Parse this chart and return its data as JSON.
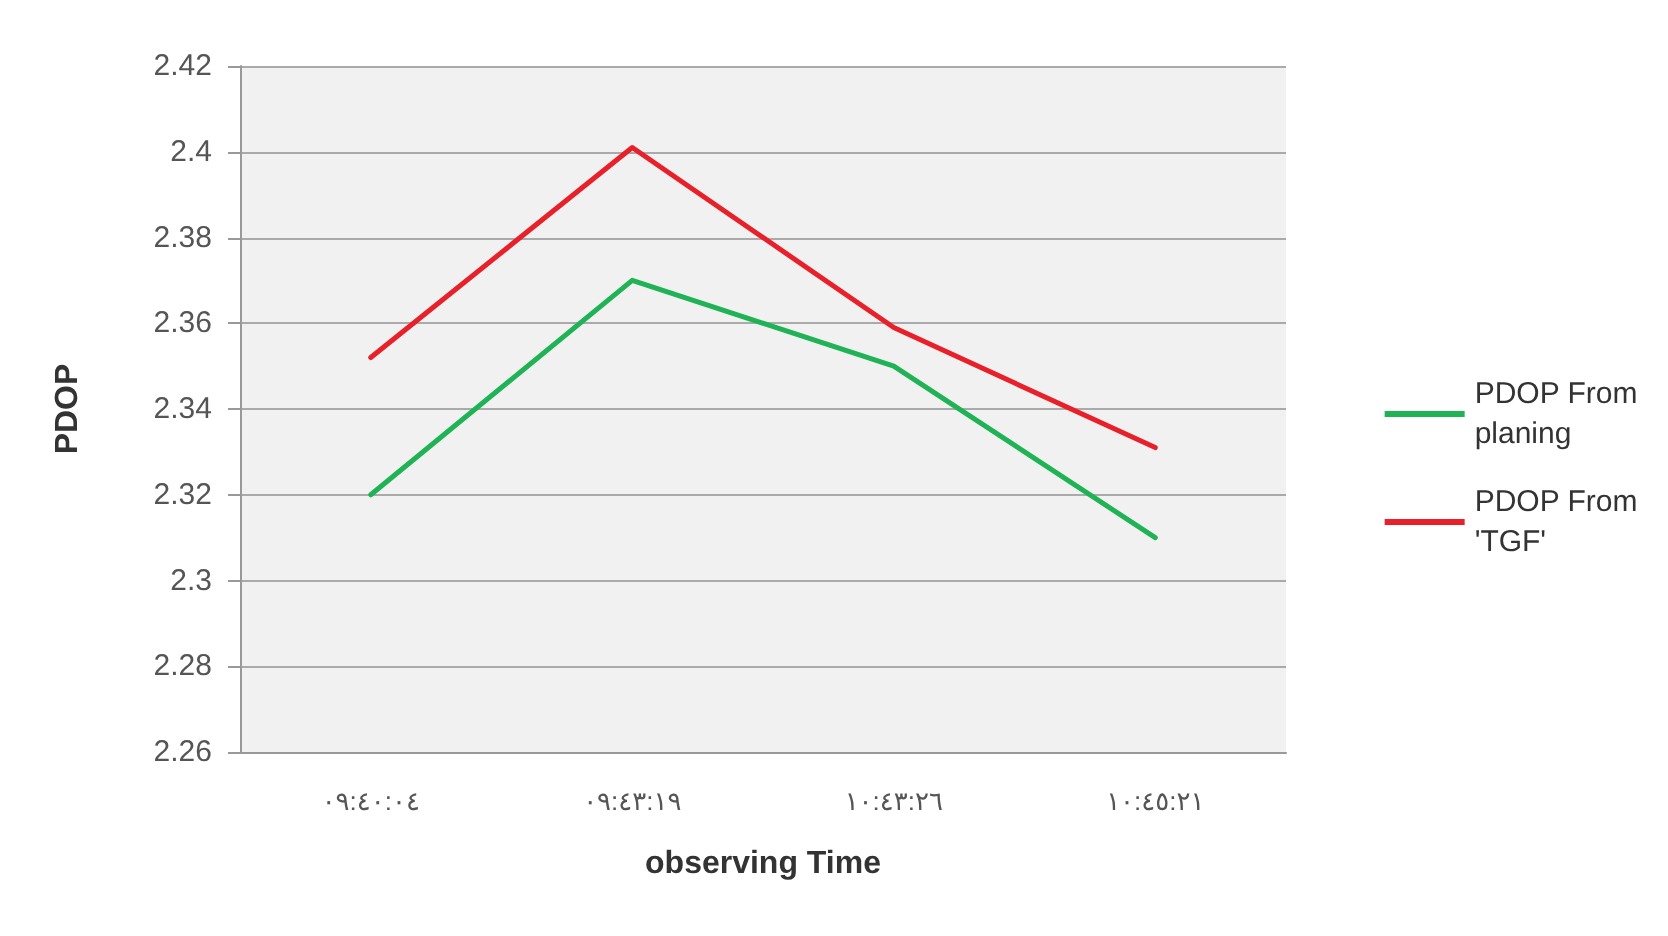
{
  "chart_data": {
    "type": "line",
    "xlabel": "observing Time",
    "ylabel": "PDOP",
    "categories": [
      "٠٩:٤٠:٠٤",
      "٠٩:٤٣:١٩",
      "١٠:٤٣:٢٦",
      "١٠:٤٥:٢١"
    ],
    "series": [
      {
        "name": "PDOP From planing",
        "color": "#1fb356",
        "values": [
          2.32,
          2.37,
          2.35,
          2.31
        ]
      },
      {
        "name": "PDOP From 'TGF'",
        "color": "#e8202a",
        "values": [
          2.352,
          2.401,
          2.359,
          2.331
        ]
      }
    ],
    "ylim": [
      2.26,
      2.42
    ],
    "yticks": [
      2.26,
      2.28,
      2.3,
      2.32,
      2.34,
      2.36,
      2.38,
      2.4,
      2.42
    ],
    "grid": "y",
    "legend": "right",
    "marker": "none",
    "line_style": "solid"
  }
}
